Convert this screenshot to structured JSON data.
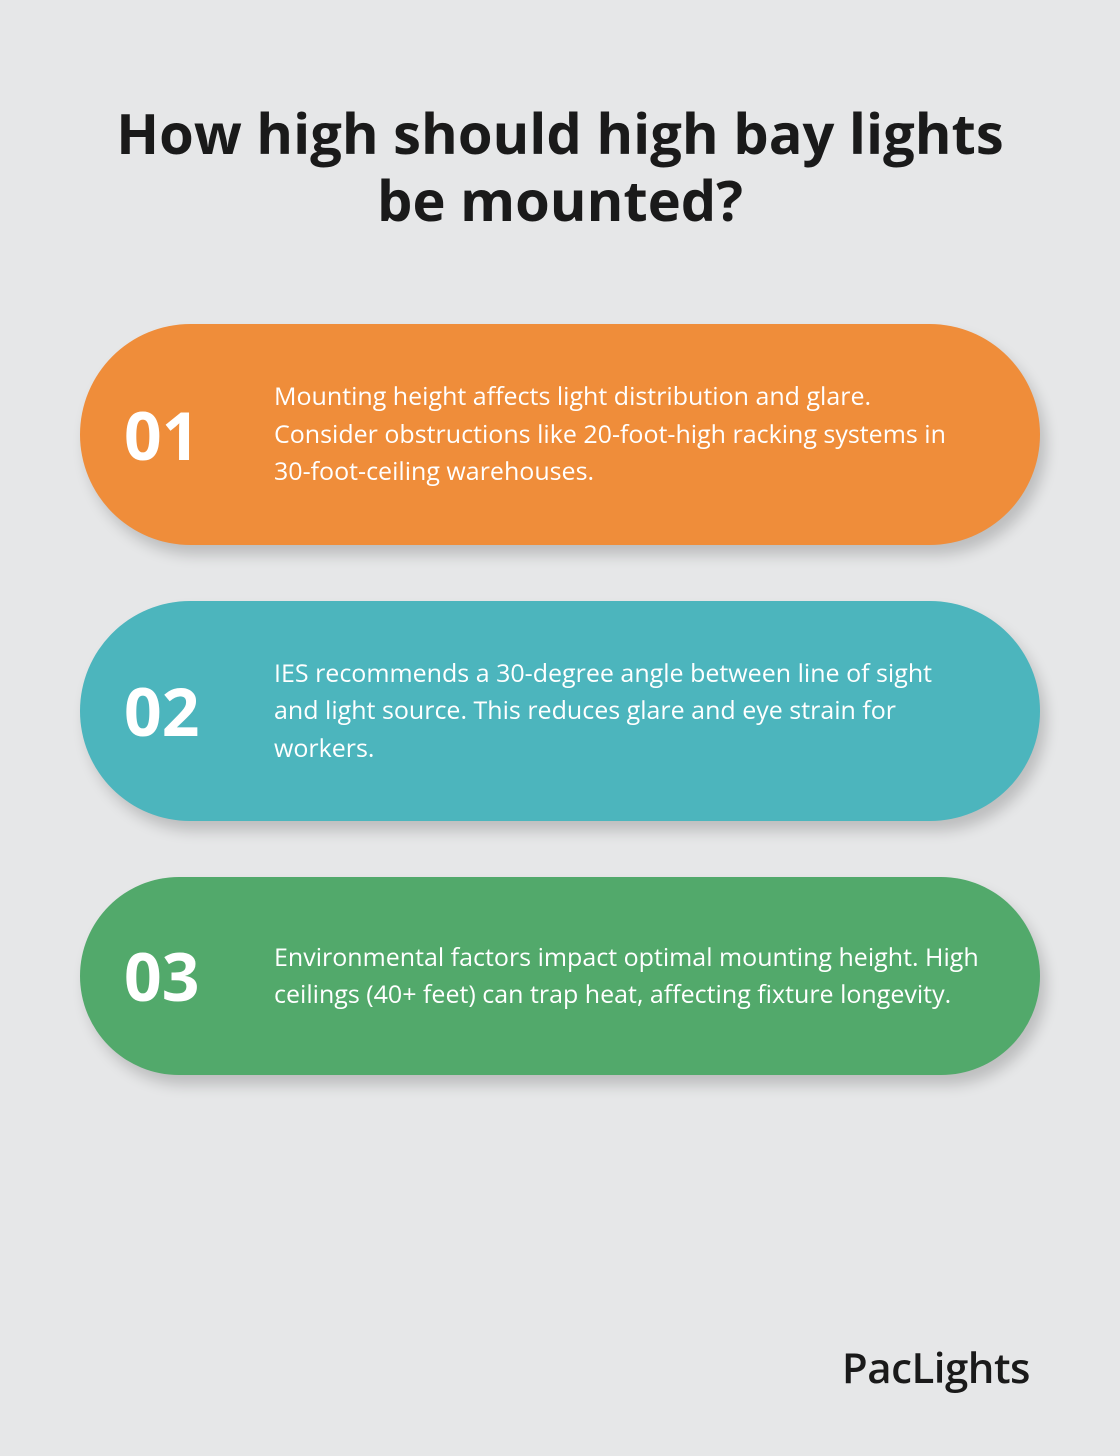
{
  "title": "How high should high bay lights be mounted?",
  "background_color": "#e6e7e8",
  "title_color": "#1a1a1a",
  "cards": [
    {
      "number": "01",
      "text": "Mounting height affects light distribution and glare. Consider obstructions like 20-foot-high racking systems in 30-foot-ceiling warehouses.",
      "background_color": "#ef8d3a",
      "text_color": "#ffffff"
    },
    {
      "number": "02",
      "text": "IES recommends a 30-degree angle between line of sight and light source. This reduces glare and eye strain for workers.",
      "background_color": "#4cb5bd",
      "text_color": "#ffffff"
    },
    {
      "number": "03",
      "text": "Environmental factors impact optimal mounting height. High ceilings (40+ feet) can trap heat, affecting fixture longevity.",
      "background_color": "#52a96b",
      "text_color": "#ffffff"
    }
  ],
  "brand": "PacLights",
  "brand_color": "#1a1a1a"
}
